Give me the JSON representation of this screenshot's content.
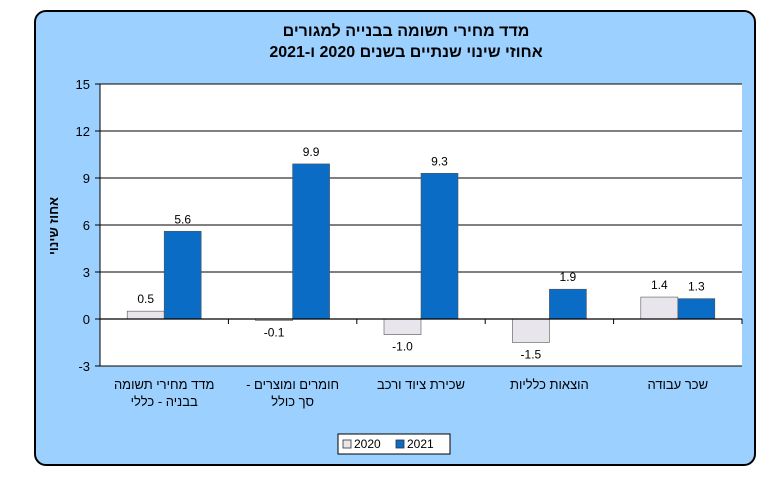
{
  "chart_data": {
    "type": "bar",
    "title_lines": [
      "מדד מחירי תשומה בבנייה למגורים",
      "אחוזי שינוי שנתיים בשנים 2020 ו-2021"
    ],
    "ylabel": "אחוז שינוי",
    "xlabel": "",
    "ylim": [
      -3,
      15
    ],
    "yticks": [
      -3,
      0,
      3,
      6,
      9,
      12,
      15
    ],
    "grid": "horizontal",
    "legend_position": "bottom-center",
    "categories": [
      [
        "מדד מחירי תשומה",
        "בבניה - כללי"
      ],
      [
        "חומרים ומוצרים -",
        "סך כולל"
      ],
      [
        "שכירת ציוד ורכב"
      ],
      [
        "הוצאות כלליות"
      ],
      [
        "שכר עבודה"
      ]
    ],
    "series": [
      {
        "name": "2020",
        "color": "#e8e6ec",
        "values": [
          0.5,
          -0.1,
          -1.0,
          -1.5,
          1.4
        ],
        "labels": [
          "0.5",
          "-0.1",
          "-1.0",
          "-1.5",
          "1.4"
        ]
      },
      {
        "name": "2021",
        "color": "#0a6cc4",
        "values": [
          5.6,
          9.9,
          9.3,
          1.9,
          1.3
        ],
        "labels": [
          "5.6",
          "9.9",
          "9.3",
          "1.9",
          "1.3"
        ]
      }
    ],
    "colors": {
      "background": "#9cd0ff",
      "plot_area": "#ffffff",
      "border": "#000000"
    }
  }
}
